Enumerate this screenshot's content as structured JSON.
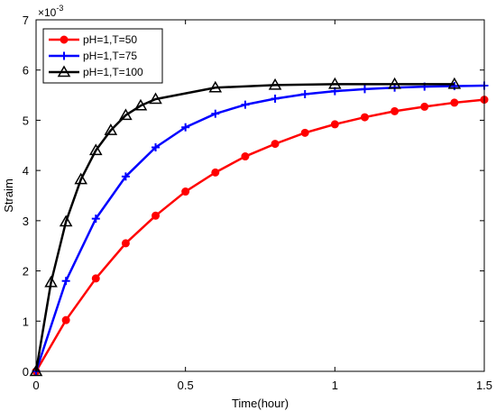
{
  "chart_data": {
    "type": "line",
    "xlabel": "Time(hour)",
    "ylabel": "Straim",
    "xlim": [
      0,
      1.5
    ],
    "ylim": [
      0,
      7
    ],
    "y_multiplier_label": "×10",
    "y_multiplier_exponent": "-3",
    "xticks": [
      0,
      0.5,
      1,
      1.5
    ],
    "xtick_labels": [
      "0",
      "0.5",
      "1",
      "1.5"
    ],
    "yticks": [
      0,
      1,
      2,
      3,
      4,
      5,
      6,
      7
    ],
    "ytick_labels": [
      "0",
      "1",
      "2",
      "3",
      "4",
      "5",
      "6",
      "7"
    ],
    "grid": false,
    "legend_position": "top-left",
    "series": [
      {
        "name": "pH=1,T=50",
        "color": "#ff0000",
        "marker": "circle",
        "x": [
          0,
          0.1,
          0.2,
          0.3,
          0.4,
          0.5,
          0.6,
          0.7,
          0.8,
          0.9,
          1.0,
          1.1,
          1.2,
          1.3,
          1.4,
          1.5
        ],
        "y": [
          0,
          1.02,
          1.85,
          2.55,
          3.1,
          3.58,
          3.96,
          4.28,
          4.53,
          4.75,
          4.92,
          5.06,
          5.18,
          5.27,
          5.35,
          5.41
        ]
      },
      {
        "name": "pH=1,T=75",
        "color": "#0000ff",
        "marker": "plus",
        "x": [
          0,
          0.1,
          0.2,
          0.3,
          0.4,
          0.5,
          0.6,
          0.7,
          0.8,
          0.9,
          1.0,
          1.1,
          1.2,
          1.3,
          1.4,
          1.5
        ],
        "y": [
          0,
          1.8,
          3.04,
          3.88,
          4.46,
          4.86,
          5.13,
          5.31,
          5.43,
          5.52,
          5.58,
          5.62,
          5.65,
          5.67,
          5.68,
          5.69
        ]
      },
      {
        "name": "pH=1,T=100",
        "color": "#000000",
        "marker": "triangle",
        "x": [
          0,
          0.05,
          0.1,
          0.15,
          0.2,
          0.25,
          0.3,
          0.35,
          0.4,
          0.6,
          0.8,
          1.0,
          1.2,
          1.4
        ],
        "y": [
          0,
          1.77,
          2.98,
          3.82,
          4.4,
          4.8,
          5.1,
          5.29,
          5.42,
          5.65,
          5.7,
          5.72,
          5.72,
          5.72
        ]
      }
    ]
  }
}
